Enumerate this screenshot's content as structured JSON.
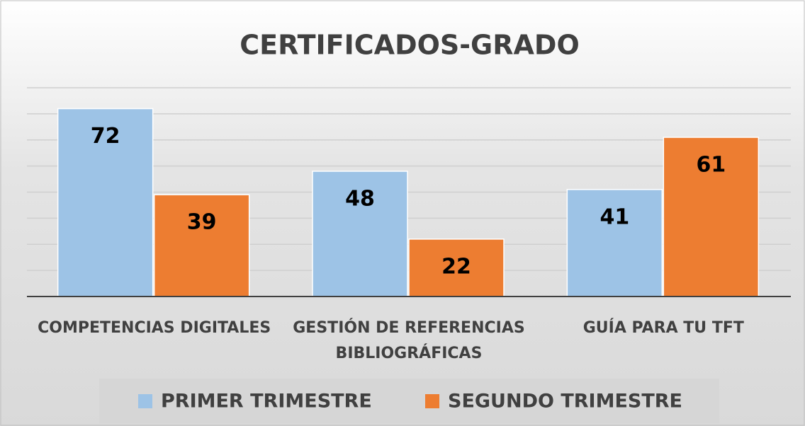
{
  "chart_data": {
    "type": "bar",
    "title": "CERTIFICADOS-GRADO",
    "categories": [
      "COMPETENCIAS DIGITALES",
      "GESTIÓN DE REFERENCIAS BIBLIOGRÁFICAS",
      "GUÍA PARA TU TFT"
    ],
    "series": [
      {
        "name": "PRIMER TRIMESTRE",
        "color": "#9dc3e6",
        "values": [
          72,
          48,
          41
        ]
      },
      {
        "name": "SEGUNDO TRIMESTRE",
        "color": "#ed7d31",
        "values": [
          39,
          22,
          61
        ]
      }
    ],
    "ylim": [
      0,
      80
    ],
    "yticks": [
      0,
      10,
      20,
      30,
      40,
      50,
      60,
      70,
      80
    ],
    "grid": true
  }
}
